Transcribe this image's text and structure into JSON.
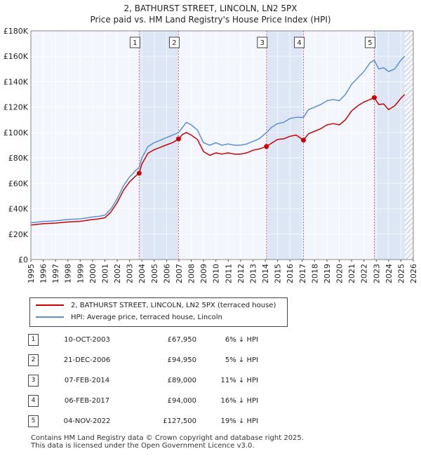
{
  "header": {
    "title_line1": "2, BATHURST STREET, LINCOLN, LN2 5PX",
    "title_line2": "Price paid vs. HM Land Registry's House Price Index (HPI)"
  },
  "chart_data": {
    "type": "line",
    "ylim": [
      0,
      180000
    ],
    "xlim": [
      1995,
      2026
    ],
    "y_ticks": [
      {
        "value": 0,
        "label": "£0"
      },
      {
        "value": 20000,
        "label": "£20K"
      },
      {
        "value": 40000,
        "label": "£40K"
      },
      {
        "value": 60000,
        "label": "£60K"
      },
      {
        "value": 80000,
        "label": "£80K"
      },
      {
        "value": 100000,
        "label": "£100K"
      },
      {
        "value": 120000,
        "label": "£120K"
      },
      {
        "value": 140000,
        "label": "£140K"
      },
      {
        "value": 160000,
        "label": "£160K"
      },
      {
        "value": 180000,
        "label": "£180K"
      }
    ],
    "x_ticks": [
      "1995",
      "1996",
      "1997",
      "1998",
      "1999",
      "2000",
      "2001",
      "2002",
      "2003",
      "2004",
      "2005",
      "2006",
      "2007",
      "2008",
      "2009",
      "2010",
      "2011",
      "2012",
      "2013",
      "2014",
      "2015",
      "2016",
      "2017",
      "2018",
      "2019",
      "2020",
      "2021",
      "2022",
      "2023",
      "2024",
      "2025",
      "2026"
    ],
    "grid": true,
    "series": [
      {
        "name": "HPI: Average price, terraced house, Lincoln",
        "color": "#5b8fd4",
        "x": [
          1995.0,
          1996.0,
          1997.0,
          1998.0,
          1999.0,
          2000.0,
          2000.5,
          2001.0,
          2001.5,
          2002.0,
          2002.5,
          2003.0,
          2003.5,
          2003.78,
          2004.0,
          2004.5,
          2005.0,
          2005.5,
          2006.0,
          2006.5,
          2006.97,
          2007.3,
          2007.6,
          2008.0,
          2008.5,
          2009.0,
          2009.5,
          2010.0,
          2010.5,
          2011.0,
          2011.5,
          2012.0,
          2012.5,
          2013.0,
          2013.5,
          2014.1,
          2014.5,
          2015.0,
          2015.5,
          2016.0,
          2016.5,
          2017.1,
          2017.5,
          2018.0,
          2018.5,
          2019.0,
          2019.5,
          2020.0,
          2020.5,
          2021.0,
          2021.5,
          2022.0,
          2022.5,
          2022.84,
          2023.2,
          2023.6,
          2024.0,
          2024.5,
          2025.0,
          2025.3
        ],
        "values": [
          29000,
          30000,
          30500,
          31500,
          32000,
          33500,
          34000,
          35000,
          40000,
          48000,
          58000,
          65000,
          70000,
          72500,
          80000,
          89000,
          92000,
          94000,
          96000,
          98000,
          100000,
          104000,
          108000,
          106000,
          102000,
          92000,
          90000,
          92000,
          90000,
          91000,
          90000,
          90000,
          91000,
          93000,
          95000,
          100000,
          104000,
          107000,
          108000,
          111000,
          112000,
          112000,
          118000,
          120000,
          122000,
          125000,
          126000,
          125000,
          130000,
          138000,
          143000,
          148000,
          155000,
          157000,
          150000,
          151000,
          148000,
          150000,
          157000,
          160000
        ]
      },
      {
        "name": "2, BATHURST STREET, LINCOLN, LN2 5PX (terraced house)",
        "color": "#cc0000",
        "x": [
          1995.0,
          1996.0,
          1997.0,
          1998.0,
          1999.0,
          2000.0,
          2000.5,
          2001.0,
          2001.5,
          2002.0,
          2002.5,
          2003.0,
          2003.5,
          2003.78,
          2004.0,
          2004.5,
          2005.0,
          2005.5,
          2006.0,
          2006.5,
          2006.97,
          2007.3,
          2007.6,
          2008.0,
          2008.5,
          2009.0,
          2009.5,
          2010.0,
          2010.5,
          2011.0,
          2011.5,
          2012.0,
          2012.5,
          2013.0,
          2013.5,
          2014.1,
          2014.5,
          2015.0,
          2015.5,
          2016.0,
          2016.5,
          2017.1,
          2017.5,
          2018.0,
          2018.5,
          2019.0,
          2019.5,
          2020.0,
          2020.5,
          2021.0,
          2021.5,
          2022.0,
          2022.5,
          2022.84,
          2023.2,
          2023.6,
          2024.0,
          2024.5,
          2025.0,
          2025.3
        ],
        "values": [
          27200,
          28200,
          28700,
          29600,
          30100,
          31500,
          32000,
          32900,
          37600,
          45000,
          54500,
          61100,
          65800,
          67950,
          75200,
          83700,
          86500,
          88400,
          90300,
          92100,
          94950,
          98500,
          100000,
          98000,
          94500,
          85000,
          82000,
          84000,
          83000,
          84000,
          83000,
          83000,
          84000,
          86000,
          87000,
          89000,
          91500,
          94500,
          95000,
          97000,
          98000,
          94000,
          99000,
          101000,
          103000,
          106000,
          107000,
          106000,
          110000,
          117000,
          121000,
          124000,
          126000,
          127500,
          122000,
          122500,
          118000,
          121000,
          127000,
          130000
        ]
      }
    ],
    "sales": [
      {
        "label": "1",
        "x": 2003.78,
        "price": 67950
      },
      {
        "label": "2",
        "x": 2006.97,
        "price": 94950
      },
      {
        "label": "3",
        "x": 2014.1,
        "price": 89000
      },
      {
        "label": "4",
        "x": 2017.1,
        "price": 94000
      },
      {
        "label": "5",
        "x": 2022.84,
        "price": 127500
      }
    ],
    "shaded_spans": [
      [
        2003.78,
        2006.97
      ],
      [
        2014.1,
        2017.1
      ],
      [
        2022.84,
        2025.3
      ]
    ],
    "hatched_from": 2025.3
  },
  "legend": {
    "items": [
      {
        "label": "2, BATHURST STREET, LINCOLN, LN2 5PX (terraced house)",
        "color": "#cc0000"
      },
      {
        "label": "HPI: Average price, terraced house, Lincoln",
        "color": "#5b8fd4"
      }
    ]
  },
  "table": {
    "rows": [
      {
        "num": "1",
        "date": "10-OCT-2003",
        "price": "£67,950",
        "hpi": "6% ↓ HPI"
      },
      {
        "num": "2",
        "date": "21-DEC-2006",
        "price": "£94,950",
        "hpi": "5% ↓ HPI"
      },
      {
        "num": "3",
        "date": "07-FEB-2014",
        "price": "£89,000",
        "hpi": "11% ↓ HPI"
      },
      {
        "num": "4",
        "date": "06-FEB-2017",
        "price": "£94,000",
        "hpi": "16% ↓ HPI"
      },
      {
        "num": "5",
        "date": "04-NOV-2022",
        "price": "£127,500",
        "hpi": "19% ↓ HPI"
      }
    ]
  },
  "footer": {
    "line1": "Contains HM Land Registry data © Crown copyright and database right 2025.",
    "line2": "This data is licensed under the Open Government Licence v3.0."
  }
}
